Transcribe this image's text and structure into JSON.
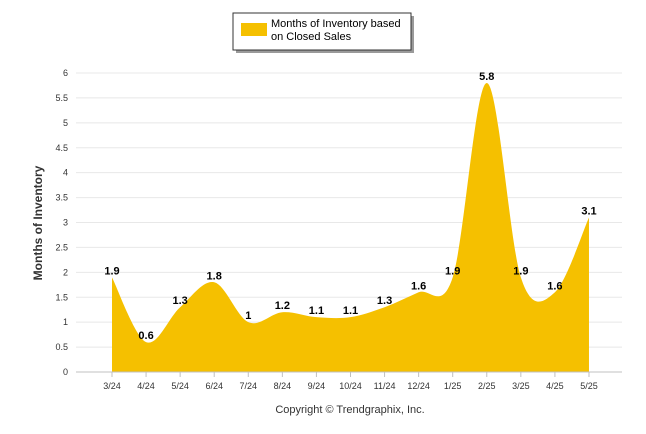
{
  "chart_data": {
    "type": "area",
    "title": "",
    "xlabel": "",
    "ylabel": "Months of Inventory",
    "categories": [
      "3/24",
      "4/24",
      "5/24",
      "6/24",
      "7/24",
      "8/24",
      "9/24",
      "10/24",
      "11/24",
      "12/24",
      "1/25",
      "2/25",
      "3/25",
      "4/25",
      "5/25"
    ],
    "series": [
      {
        "name_lines": [
          "Months of Inventory based",
          "on Closed Sales"
        ],
        "values": [
          1.9,
          0.6,
          1.3,
          1.8,
          1,
          1.2,
          1.1,
          1.1,
          1.3,
          1.6,
          1.9,
          5.8,
          1.9,
          1.6,
          3.1
        ],
        "labels": [
          "1.9",
          "0.6",
          "1.3",
          "1.8",
          "1",
          "1.2",
          "1.1",
          "1.1",
          "1.3",
          "1.6",
          "1.9",
          "5.8",
          "1.9",
          "1.6",
          "3.1"
        ],
        "color": "#F5C000"
      }
    ],
    "ylim": [
      0,
      6
    ],
    "yticks": [
      "0",
      "0.5",
      "1",
      "1.5",
      "2",
      "2.5",
      "3",
      "3.5",
      "4",
      "4.5",
      "5",
      "5.5",
      "6"
    ],
    "grid": true,
    "legend_position": "top-center"
  },
  "copyright": "Copyright © Trendgraphix, Inc."
}
